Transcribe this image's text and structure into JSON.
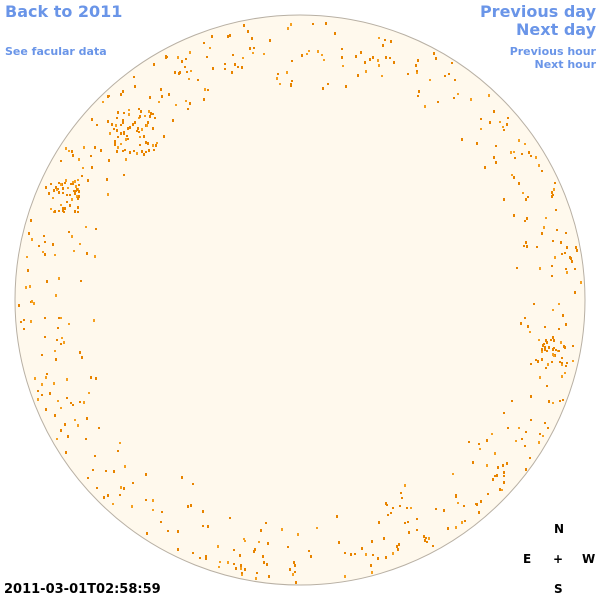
{
  "links": {
    "back": "Back to 2011",
    "facular": "See facular data",
    "previous_day": "Previous day",
    "next_day": "Next day",
    "previous_hour": "Previous hour",
    "next_hour": "Next hour"
  },
  "compass": {
    "north": "N",
    "east": "E",
    "center": "+",
    "west": "W",
    "south": "S"
  },
  "timestamp": "2011-03-01T02:58:59"
}
